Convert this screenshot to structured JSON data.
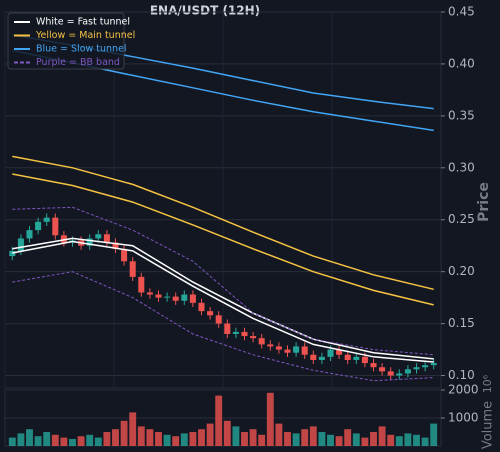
{
  "chart_data": {
    "type": "candlestick",
    "title": "ENA/USDT (12H)",
    "y_label": "Price",
    "volume_label": "Volume",
    "volume_offset": "10⁶",
    "up_color": "#26a69a",
    "down_color": "#ef5350",
    "ylim": [
      0.088,
      0.45
    ],
    "yticks": [
      {
        "value": 0.1,
        "label": "0.10"
      },
      0.15,
      {
        "value": 0.2,
        "label": "0.20"
      },
      0.25,
      {
        "value": 0.3,
        "label": "0.30"
      },
      0.35,
      {
        "value": 0.4,
        "label": "0.40"
      },
      0.45
    ],
    "volume_ylim": [
      0,
      2000
    ],
    "volume_yticks": [
      1000,
      2000
    ],
    "grid": true,
    "legend": "upper left",
    "open": [
      0.215,
      0.22,
      0.232,
      0.24,
      0.248,
      0.252,
      0.235,
      0.228,
      0.23,
      0.225,
      0.232,
      0.236,
      0.228,
      0.222,
      0.21,
      0.195,
      0.18,
      0.178,
      0.175,
      0.176,
      0.172,
      0.178,
      0.17,
      0.162,
      0.158,
      0.15,
      0.14,
      0.142,
      0.138,
      0.136,
      0.13,
      0.128,
      0.125,
      0.122,
      0.128,
      0.12,
      0.115,
      0.118,
      0.125,
      0.12,
      0.115,
      0.118,
      0.112,
      0.108,
      0.104,
      0.1,
      0.102,
      0.106,
      0.108,
      0.11
    ],
    "high": [
      0.224,
      0.236,
      0.244,
      0.252,
      0.256,
      0.256,
      0.239,
      0.234,
      0.234,
      0.236,
      0.24,
      0.24,
      0.232,
      0.226,
      0.214,
      0.199,
      0.184,
      0.182,
      0.18,
      0.18,
      0.182,
      0.182,
      0.174,
      0.166,
      0.162,
      0.154,
      0.146,
      0.146,
      0.142,
      0.14,
      0.134,
      0.132,
      0.129,
      0.132,
      0.132,
      0.124,
      0.122,
      0.129,
      0.129,
      0.124,
      0.122,
      0.122,
      0.116,
      0.112,
      0.108,
      0.106,
      0.11,
      0.112,
      0.114,
      0.116
    ],
    "low": [
      0.211,
      0.216,
      0.228,
      0.236,
      0.244,
      0.231,
      0.224,
      0.224,
      0.221,
      0.221,
      0.228,
      0.224,
      0.218,
      0.206,
      0.191,
      0.176,
      0.174,
      0.171,
      0.171,
      0.168,
      0.168,
      0.166,
      0.158,
      0.154,
      0.146,
      0.136,
      0.136,
      0.134,
      0.132,
      0.126,
      0.124,
      0.121,
      0.118,
      0.118,
      0.116,
      0.111,
      0.111,
      0.114,
      0.116,
      0.111,
      0.111,
      0.108,
      0.104,
      0.1,
      0.096,
      0.096,
      0.098,
      0.102,
      0.104,
      0.106
    ],
    "close": [
      0.22,
      0.232,
      0.24,
      0.248,
      0.252,
      0.235,
      0.228,
      0.23,
      0.225,
      0.232,
      0.236,
      0.228,
      0.222,
      0.21,
      0.195,
      0.18,
      0.178,
      0.175,
      0.176,
      0.172,
      0.178,
      0.17,
      0.162,
      0.158,
      0.15,
      0.14,
      0.142,
      0.138,
      0.136,
      0.13,
      0.128,
      0.125,
      0.122,
      0.128,
      0.12,
      0.115,
      0.118,
      0.125,
      0.12,
      0.115,
      0.118,
      0.112,
      0.108,
      0.104,
      0.1,
      0.102,
      0.106,
      0.108,
      0.11,
      0.112
    ],
    "volume": [
      300,
      450,
      600,
      350,
      500,
      400,
      300,
      250,
      350,
      400,
      300,
      500,
      600,
      900,
      1200,
      700,
      600,
      500,
      400,
      350,
      450,
      500,
      600,
      800,
      1800,
      900,
      700,
      500,
      600,
      400,
      1900,
      800,
      500,
      450,
      600,
      700,
      500,
      400,
      350,
      600,
      450,
      300,
      500,
      700,
      400,
      350,
      450,
      400,
      300,
      800
    ],
    "line_x": [
      0,
      7,
      14,
      21,
      28,
      35,
      42,
      49
    ],
    "tunnels": [
      {
        "name": "White = Fast tunnel",
        "color": "#ffffff",
        "dashed": false,
        "lines": [
          [
            0.222,
            0.232,
            0.225,
            0.19,
            0.16,
            0.135,
            0.122,
            0.116
          ],
          [
            0.218,
            0.229,
            0.22,
            0.186,
            0.155,
            0.13,
            0.118,
            0.113
          ]
        ]
      },
      {
        "name": "Yellow = Main tunnel",
        "color": "#f5c242",
        "dashed": false,
        "lines": [
          [
            0.311,
            0.3,
            0.284,
            0.262,
            0.238,
            0.215,
            0.197,
            0.183
          ],
          [
            0.294,
            0.283,
            0.267,
            0.245,
            0.222,
            0.2,
            0.182,
            0.168
          ]
        ]
      },
      {
        "name": "Blue = Slow tunnel",
        "color": "#42a5f5",
        "dashed": false,
        "lines": [
          [
            0.428,
            0.418,
            0.407,
            0.396,
            0.384,
            0.372,
            0.364,
            0.357
          ],
          [
            0.413,
            0.401,
            0.389,
            0.377,
            0.365,
            0.354,
            0.345,
            0.336
          ]
        ]
      },
      {
        "name": "Purple = BB band",
        "color": "#7e57c2",
        "dashed": true,
        "lines": [
          [
            0.26,
            0.262,
            0.24,
            0.21,
            0.16,
            0.135,
            0.125,
            0.12
          ],
          [
            0.19,
            0.2,
            0.175,
            0.14,
            0.12,
            0.105,
            0.095,
            0.098
          ]
        ]
      }
    ]
  }
}
